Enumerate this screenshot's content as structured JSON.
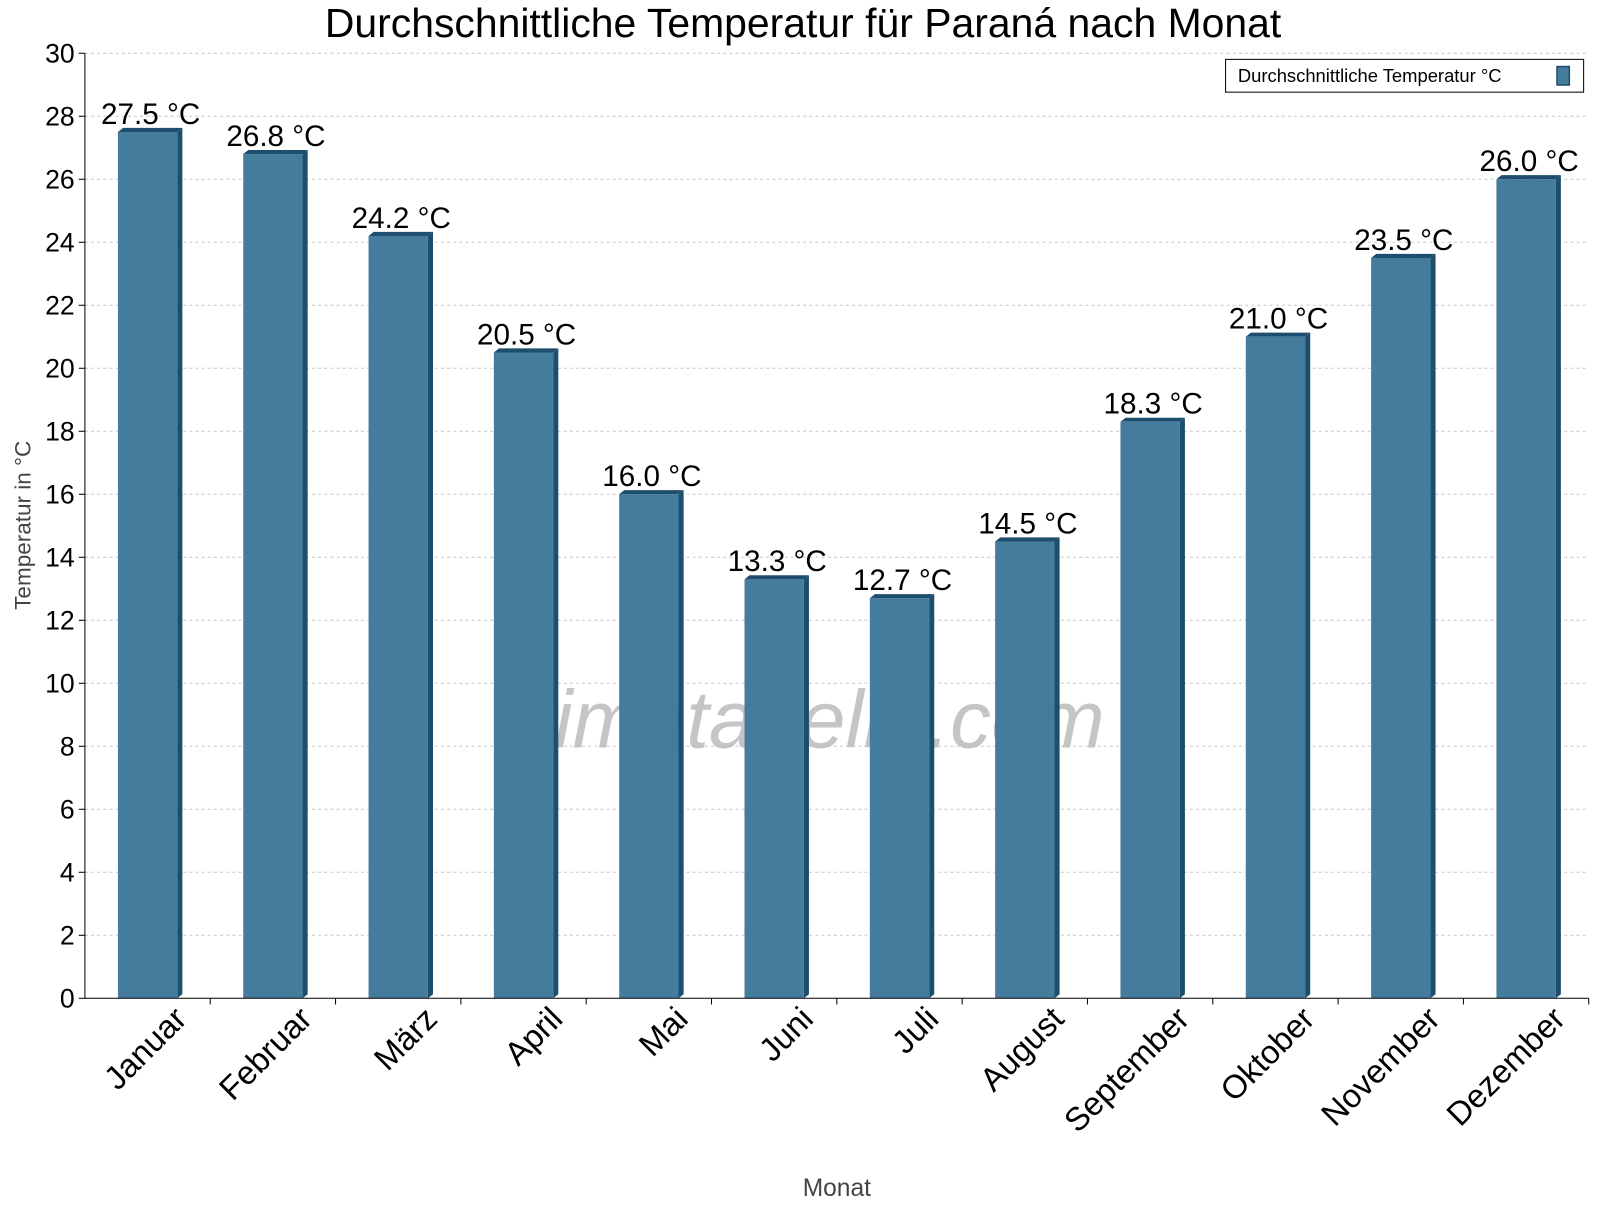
{
  "chart_data": {
    "type": "bar",
    "title": "Durchschnittliche Temperatur für Paraná nach Monat",
    "xlabel": "Monat",
    "ylabel": "Temperatur in °C",
    "ylim": [
      0,
      30
    ],
    "yticks": [
      0,
      2,
      4,
      6,
      8,
      10,
      12,
      14,
      16,
      18,
      20,
      22,
      24,
      26,
      28,
      30
    ],
    "grid": true,
    "legend_position": "top-right",
    "categories": [
      "Januar",
      "Februar",
      "März",
      "April",
      "Mai",
      "Juni",
      "Juli",
      "August",
      "September",
      "Oktober",
      "November",
      "Dezember"
    ],
    "series": [
      {
        "name": "Durchschnittliche Temperatur °C",
        "values": [
          27.5,
          26.8,
          24.2,
          20.5,
          16.0,
          13.3,
          12.7,
          14.5,
          18.3,
          21.0,
          23.5,
          26.0
        ],
        "data_labels": [
          "27.5 °C",
          "26.8 °C",
          "24.2 °C",
          "20.5 °C",
          "16.0 °C",
          "13.3 °C",
          "12.7 °C",
          "14.5 °C",
          "18.3 °C",
          "21.0 °C",
          "23.5 °C",
          "26.0 °C"
        ],
        "color": "#457b9d",
        "edge_color": "#1d4e6e"
      }
    ],
    "watermark": "klimatabelle.com"
  }
}
